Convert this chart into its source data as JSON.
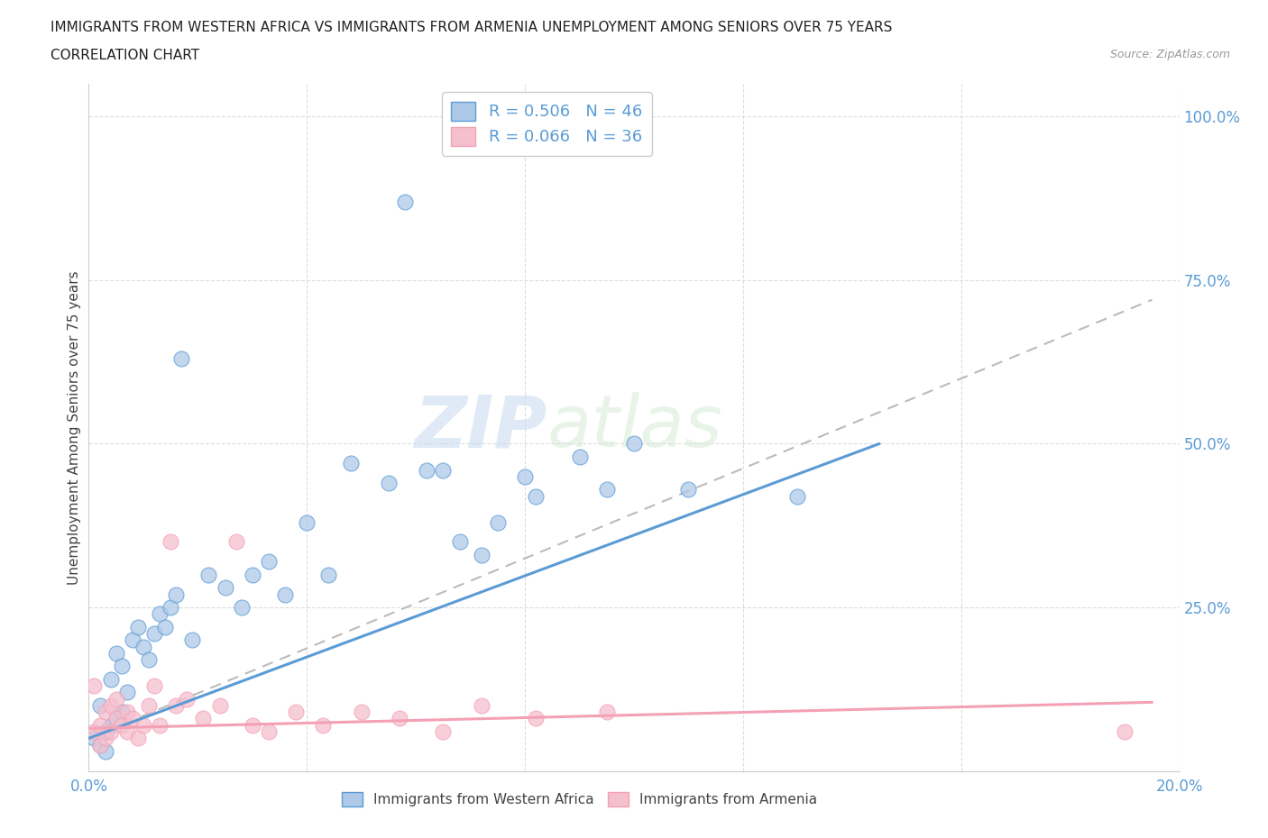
{
  "title_line1": "IMMIGRANTS FROM WESTERN AFRICA VS IMMIGRANTS FROM ARMENIA UNEMPLOYMENT AMONG SENIORS OVER 75 YEARS",
  "title_line2": "CORRELATION CHART",
  "source": "Source: ZipAtlas.com",
  "ylabel": "Unemployment Among Seniors over 75 years",
  "watermark_zip": "ZIP",
  "watermark_atlas": "atlas",
  "xlim": [
    0.0,
    0.2
  ],
  "ylim": [
    0.0,
    1.05
  ],
  "xticks": [
    0.0,
    0.04,
    0.08,
    0.12,
    0.16,
    0.2
  ],
  "xticklabels": [
    "0.0%",
    "",
    "",
    "",
    "",
    "20.0%"
  ],
  "yticks": [
    0.0,
    0.25,
    0.5,
    0.75,
    1.0
  ],
  "yticklabels_right": [
    "",
    "25.0%",
    "50.0%",
    "75.0%",
    "100.0%"
  ],
  "legend_items": [
    {
      "label": "R = 0.506   N = 46",
      "color": "#a8c8f0"
    },
    {
      "label": "R = 0.066   N = 36",
      "color": "#f5b8c8"
    }
  ],
  "western_africa_scatter_x": [
    0.001,
    0.002,
    0.002,
    0.003,
    0.003,
    0.004,
    0.004,
    0.005,
    0.005,
    0.006,
    0.006,
    0.007,
    0.008,
    0.009,
    0.01,
    0.011,
    0.012,
    0.013,
    0.014,
    0.015,
    0.016,
    0.017,
    0.019,
    0.022,
    0.025,
    0.028,
    0.03,
    0.033,
    0.036,
    0.04,
    0.044,
    0.048,
    0.055,
    0.062,
    0.068,
    0.075,
    0.082,
    0.09,
    0.095,
    0.1,
    0.058,
    0.065,
    0.072,
    0.08,
    0.11,
    0.13
  ],
  "western_africa_scatter_y": [
    0.05,
    0.04,
    0.1,
    0.06,
    0.03,
    0.07,
    0.14,
    0.08,
    0.18,
    0.09,
    0.16,
    0.12,
    0.2,
    0.22,
    0.19,
    0.17,
    0.21,
    0.24,
    0.22,
    0.25,
    0.27,
    0.63,
    0.2,
    0.3,
    0.28,
    0.25,
    0.3,
    0.32,
    0.27,
    0.38,
    0.3,
    0.47,
    0.44,
    0.46,
    0.35,
    0.38,
    0.42,
    0.48,
    0.43,
    0.5,
    0.87,
    0.46,
    0.33,
    0.45,
    0.43,
    0.42
  ],
  "armenia_scatter_x": [
    0.001,
    0.001,
    0.002,
    0.002,
    0.003,
    0.003,
    0.004,
    0.004,
    0.005,
    0.005,
    0.006,
    0.007,
    0.007,
    0.008,
    0.009,
    0.01,
    0.011,
    0.012,
    0.013,
    0.015,
    0.016,
    0.018,
    0.021,
    0.024,
    0.027,
    0.03,
    0.033,
    0.038,
    0.043,
    0.05,
    0.057,
    0.065,
    0.072,
    0.082,
    0.095,
    0.19
  ],
  "armenia_scatter_y": [
    0.13,
    0.06,
    0.07,
    0.04,
    0.09,
    0.05,
    0.1,
    0.06,
    0.08,
    0.11,
    0.07,
    0.09,
    0.06,
    0.08,
    0.05,
    0.07,
    0.1,
    0.13,
    0.07,
    0.35,
    0.1,
    0.11,
    0.08,
    0.1,
    0.35,
    0.07,
    0.06,
    0.09,
    0.07,
    0.09,
    0.08,
    0.06,
    0.1,
    0.08,
    0.09,
    0.06
  ],
  "wa_line_x": [
    0.0,
    0.145
  ],
  "wa_line_y": [
    0.05,
    0.5
  ],
  "arm_line_x": [
    0.0,
    0.195
  ],
  "arm_line_y": [
    0.065,
    0.105
  ],
  "dashed_line_x": [
    0.0,
    0.195
  ],
  "dashed_line_y": [
    0.05,
    0.72
  ],
  "blue_color": "#5b9bd5",
  "pink_color": "#f4a0b5",
  "blue_fill": "#aec9e8",
  "pink_fill": "#f5c0ce",
  "blue_line": "#5b9bd5",
  "pink_line": "#f4a0b5",
  "dashed_line_color": "#bbbbbb",
  "background_color": "#ffffff",
  "grid_color": "#dddddd",
  "bottom_legend": [
    {
      "label": "Immigrants from Western Africa",
      "facecolor": "#aec9e8",
      "edgecolor": "#5b9bd5"
    },
    {
      "label": "Immigrants from Armenia",
      "facecolor": "#f5c0ce",
      "edgecolor": "#f4a0b5"
    }
  ]
}
